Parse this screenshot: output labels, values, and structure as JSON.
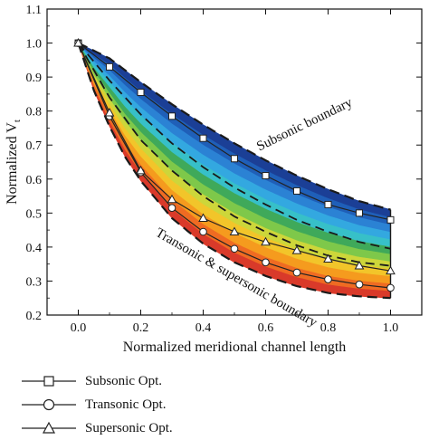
{
  "chart_data": {
    "type": "line",
    "title": "",
    "xlabel": "Normalized meridional channel length",
    "ylabel_main": "Normalized V",
    "ylabel_sub": "t",
    "xlim": [
      -0.1,
      1.1
    ],
    "ylim": [
      0.2,
      1.1
    ],
    "x_ticks": [
      "0.0",
      "0.2",
      "0.4",
      "0.6",
      "0.8",
      "1.0"
    ],
    "y_ticks": [
      "0.2",
      "0.3",
      "0.4",
      "0.5",
      "0.6",
      "0.7",
      "0.8",
      "0.9",
      "1.0",
      "1.1"
    ],
    "x_tick_values": [
      0.0,
      0.2,
      0.4,
      0.6,
      0.8,
      1.0
    ],
    "y_tick_values": [
      0.2,
      0.3,
      0.4,
      0.5,
      0.6,
      0.7,
      0.8,
      0.9,
      1.0,
      1.1
    ],
    "grid": false,
    "annotations": [
      {
        "text": "Subsonic boundary",
        "x": 0.73,
        "y": 0.75,
        "angle": -26
      },
      {
        "text": "Transonic & supersonic boundary",
        "x": 0.5,
        "y": 0.3,
        "angle": 30
      }
    ],
    "band_colors": [
      "#d93a2a",
      "#ef6b22",
      "#f59b1e",
      "#f2c52a",
      "#cdd63a",
      "#7ec84a",
      "#3fa95a",
      "#37c0c8",
      "#33a8e0",
      "#2b82d4",
      "#1f5fb8",
      "#1b3f96"
    ],
    "boundaries": {
      "subsonic": {
        "x": [
          0.0,
          0.1,
          0.2,
          0.3,
          0.4,
          0.5,
          0.6,
          0.7,
          0.8,
          0.9,
          1.0
        ],
        "y": [
          1.0,
          0.955,
          0.885,
          0.82,
          0.76,
          0.705,
          0.655,
          0.61,
          0.57,
          0.535,
          0.51
        ]
      },
      "transonic_supersonic": {
        "x": [
          0.0,
          0.05,
          0.1,
          0.15,
          0.2,
          0.3,
          0.4,
          0.5,
          0.6,
          0.7,
          0.8,
          0.9,
          1.0
        ],
        "y": [
          1.0,
          0.86,
          0.755,
          0.665,
          0.595,
          0.485,
          0.41,
          0.355,
          0.315,
          0.285,
          0.265,
          0.255,
          0.25
        ]
      },
      "dashed_inner": [
        {
          "x": [
            0.0,
            0.1,
            0.2,
            0.3,
            0.4,
            0.5,
            0.6,
            0.7,
            0.8,
            0.9,
            1.0
          ],
          "y": [
            1.0,
            0.89,
            0.79,
            0.705,
            0.635,
            0.575,
            0.525,
            0.48,
            0.445,
            0.415,
            0.395
          ]
        },
        {
          "x": [
            0.0,
            0.1,
            0.2,
            0.3,
            0.4,
            0.5,
            0.6,
            0.7,
            0.8,
            0.9,
            1.0
          ],
          "y": [
            1.0,
            0.84,
            0.715,
            0.625,
            0.55,
            0.49,
            0.445,
            0.405,
            0.375,
            0.355,
            0.345
          ]
        }
      ]
    },
    "series": [
      {
        "name": "Subsonic Opt.",
        "marker": "square",
        "x": [
          0.0,
          0.1,
          0.2,
          0.3,
          0.4,
          0.5,
          0.6,
          0.7,
          0.8,
          0.9,
          1.0
        ],
        "y": [
          1.0,
          0.93,
          0.855,
          0.785,
          0.72,
          0.66,
          0.61,
          0.565,
          0.525,
          0.5,
          0.48
        ]
      },
      {
        "name": "Transonic Opt.",
        "marker": "circle",
        "x": [
          0.0,
          0.1,
          0.2,
          0.3,
          0.4,
          0.5,
          0.6,
          0.7,
          0.8,
          0.9,
          1.0
        ],
        "y": [
          1.0,
          0.785,
          0.62,
          0.515,
          0.445,
          0.395,
          0.355,
          0.325,
          0.305,
          0.29,
          0.28
        ]
      },
      {
        "name": "Supersonic Opt.",
        "marker": "triangle",
        "x": [
          0.0,
          0.1,
          0.2,
          0.3,
          0.4,
          0.5,
          0.6,
          0.7,
          0.8,
          0.9,
          1.0
        ],
        "y": [
          1.0,
          0.795,
          0.625,
          0.54,
          0.485,
          0.445,
          0.415,
          0.39,
          0.365,
          0.345,
          0.33
        ]
      }
    ]
  },
  "legend": {
    "items": [
      {
        "label": "Subsonic Opt.",
        "marker": "square"
      },
      {
        "label": "Transonic Opt.",
        "marker": "circle"
      },
      {
        "label": "Supersonic Opt.",
        "marker": "triangle"
      }
    ]
  }
}
